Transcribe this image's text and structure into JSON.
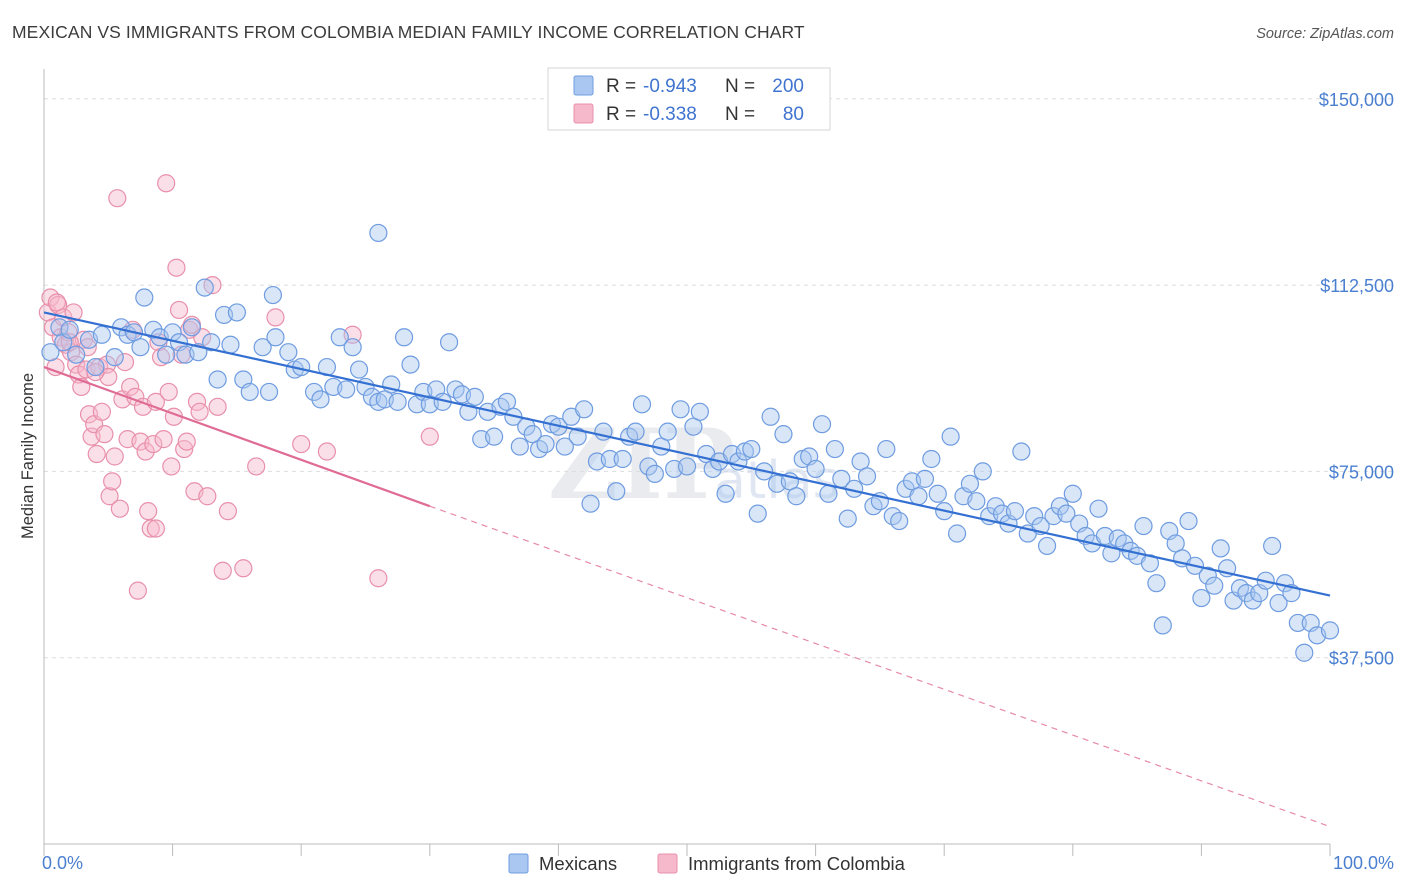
{
  "header": {
    "title": "MEXICAN VS IMMIGRANTS FROM COLOMBIA MEDIAN FAMILY INCOME CORRELATION CHART",
    "source": "Source: ZipAtlas.com"
  },
  "watermark": {
    "main": "ZIP",
    "sub": "atlas"
  },
  "legend_top": {
    "rows": [
      {
        "r_label": "R =",
        "r_value": "-0.943",
        "n_label": "N =",
        "n_value": "200",
        "color": "#a9c7f0",
        "stroke": "#6f9ce0"
      },
      {
        "r_label": "R =",
        "r_value": "-0.338",
        "n_label": "N =",
        "n_value": "80",
        "color": "#f6b8cb",
        "stroke": "#e890ab"
      }
    ]
  },
  "legend_bottom": {
    "items": [
      {
        "label": "Mexicans",
        "color": "#a9c7f0",
        "stroke": "#6f9ce0"
      },
      {
        "label": "Immigrants from Colombia",
        "color": "#f6b8cb",
        "stroke": "#e890ab"
      }
    ]
  },
  "chart_data": {
    "type": "scatter",
    "title": "MEXICAN VS IMMIGRANTS FROM COLOMBIA MEDIAN FAMILY INCOME CORRELATION CHART",
    "xlabel": "",
    "ylabel": "Median Family Income",
    "x_tick_labels": [
      "0.0%",
      "100.0%"
    ],
    "y_tick_labels": [
      "$37,500",
      "$75,000",
      "$112,500",
      "$150,000"
    ],
    "y_ticks": [
      37500,
      75000,
      112500,
      150000
    ],
    "xlim": [
      0,
      100
    ],
    "ylim": [
      0,
      156000
    ],
    "grid": "horizontal dashed",
    "legend_placement": "top-center and bottom-center",
    "series": [
      {
        "name": "Mexicans",
        "color": "#6f9ce0",
        "fill": "#a9c7f0",
        "trend": {
          "x": [
            0,
            100
          ],
          "y": [
            107000,
            50000
          ],
          "style": "solid",
          "color": "#3470d2"
        },
        "points": [
          [
            0.5,
            99000
          ],
          [
            1.2,
            104000
          ],
          [
            1.5,
            101000
          ],
          [
            2,
            103500
          ],
          [
            2.5,
            98500
          ],
          [
            3.5,
            101500
          ],
          [
            4,
            96000
          ],
          [
            4.5,
            102500
          ],
          [
            5.5,
            98000
          ],
          [
            6,
            104000
          ],
          [
            6.5,
            102500
          ],
          [
            7,
            103000
          ],
          [
            7.5,
            100000
          ],
          [
            7.8,
            110000
          ],
          [
            8.5,
            103500
          ],
          [
            9,
            102000
          ],
          [
            9.5,
            98500
          ],
          [
            10,
            103000
          ],
          [
            10.5,
            101000
          ],
          [
            11,
            98500
          ],
          [
            11.5,
            104000
          ],
          [
            12,
            99000
          ],
          [
            12.5,
            112000
          ],
          [
            13,
            101000
          ],
          [
            13.5,
            93500
          ],
          [
            14,
            106500
          ],
          [
            14.5,
            100500
          ],
          [
            15,
            107000
          ],
          [
            15.5,
            93500
          ],
          [
            16,
            91000
          ],
          [
            17,
            100000
          ],
          [
            17.5,
            91000
          ],
          [
            17.8,
            110500
          ],
          [
            18,
            102000
          ],
          [
            19,
            99000
          ],
          [
            19.5,
            95500
          ],
          [
            20,
            96000
          ],
          [
            21,
            91000
          ],
          [
            21.5,
            89500
          ],
          [
            22,
            96000
          ],
          [
            22.5,
            92000
          ],
          [
            23,
            102000
          ],
          [
            23.5,
            91500
          ],
          [
            24,
            100000
          ],
          [
            24.5,
            95500
          ],
          [
            25,
            92000
          ],
          [
            25.5,
            90000
          ],
          [
            26,
            89000
          ],
          [
            26,
            123000
          ],
          [
            26.5,
            89500
          ],
          [
            27,
            92500
          ],
          [
            27.5,
            89000
          ],
          [
            28,
            102000
          ],
          [
            28.5,
            96500
          ],
          [
            29,
            88500
          ],
          [
            29.5,
            91000
          ],
          [
            30,
            88500
          ],
          [
            30.5,
            91500
          ],
          [
            31,
            89000
          ],
          [
            31.5,
            101000
          ],
          [
            32,
            91500
          ],
          [
            32.5,
            90500
          ],
          [
            33,
            87000
          ],
          [
            33.5,
            90000
          ],
          [
            34,
            81500
          ],
          [
            34.5,
            87000
          ],
          [
            35,
            82000
          ],
          [
            35.5,
            88000
          ],
          [
            36,
            89000
          ],
          [
            36.5,
            86000
          ],
          [
            37,
            80000
          ],
          [
            37.5,
            84000
          ],
          [
            38,
            82500
          ],
          [
            38.5,
            79500
          ],
          [
            39,
            80500
          ],
          [
            39.5,
            84500
          ],
          [
            40,
            84000
          ],
          [
            40.5,
            80000
          ],
          [
            41,
            86000
          ],
          [
            41.5,
            82000
          ],
          [
            42,
            87500
          ],
          [
            42.5,
            68500
          ],
          [
            43,
            77000
          ],
          [
            43.5,
            83000
          ],
          [
            44,
            77500
          ],
          [
            44.5,
            71000
          ],
          [
            45,
            77500
          ],
          [
            45.5,
            82000
          ],
          [
            46,
            83000
          ],
          [
            46.5,
            88500
          ],
          [
            47,
            76000
          ],
          [
            47.5,
            74500
          ],
          [
            48,
            80000
          ],
          [
            48.5,
            83000
          ],
          [
            49,
            75500
          ],
          [
            49.5,
            87500
          ],
          [
            50,
            76000
          ],
          [
            50.5,
            84000
          ],
          [
            51,
            87000
          ],
          [
            51.5,
            78500
          ],
          [
            52,
            75500
          ],
          [
            52.5,
            77000
          ],
          [
            53,
            70500
          ],
          [
            53.5,
            78500
          ],
          [
            54,
            77000
          ],
          [
            54.5,
            79000
          ],
          [
            55,
            79500
          ],
          [
            55.5,
            66500
          ],
          [
            56,
            75000
          ],
          [
            56.5,
            86000
          ],
          [
            57,
            72500
          ],
          [
            57.5,
            82500
          ],
          [
            58,
            73000
          ],
          [
            58.5,
            70000
          ],
          [
            59,
            77500
          ],
          [
            59.5,
            78000
          ],
          [
            60,
            75500
          ],
          [
            60.5,
            84500
          ],
          [
            61,
            70500
          ],
          [
            61.5,
            79500
          ],
          [
            62,
            73500
          ],
          [
            62.5,
            65500
          ],
          [
            63,
            71500
          ],
          [
            63.5,
            77000
          ],
          [
            64,
            74000
          ],
          [
            64.5,
            68000
          ],
          [
            65,
            69000
          ],
          [
            65.5,
            79500
          ],
          [
            66,
            66000
          ],
          [
            66.5,
            65000
          ],
          [
            67,
            71500
          ],
          [
            67.5,
            73000
          ],
          [
            68,
            70000
          ],
          [
            68.5,
            73500
          ],
          [
            69,
            77500
          ],
          [
            69.5,
            70500
          ],
          [
            70,
            67000
          ],
          [
            70.5,
            82000
          ],
          [
            71,
            62500
          ],
          [
            71.5,
            70000
          ],
          [
            72,
            72500
          ],
          [
            72.5,
            69000
          ],
          [
            73,
            75000
          ],
          [
            73.5,
            66000
          ],
          [
            74,
            68000
          ],
          [
            74.5,
            66500
          ],
          [
            75,
            64500
          ],
          [
            75.5,
            67000
          ],
          [
            76,
            79000
          ],
          [
            76.5,
            62500
          ],
          [
            77,
            66000
          ],
          [
            77.5,
            64000
          ],
          [
            78,
            60000
          ],
          [
            78.5,
            66000
          ],
          [
            79,
            68000
          ],
          [
            79.5,
            66500
          ],
          [
            80,
            70500
          ],
          [
            80.5,
            64500
          ],
          [
            81,
            62000
          ],
          [
            81.5,
            60500
          ],
          [
            82,
            67500
          ],
          [
            82.5,
            62000
          ],
          [
            83,
            58500
          ],
          [
            83.5,
            61500
          ],
          [
            84,
            60500
          ],
          [
            84.5,
            59000
          ],
          [
            85,
            58000
          ],
          [
            85.5,
            64000
          ],
          [
            86,
            56500
          ],
          [
            86.5,
            52500
          ],
          [
            87,
            44000
          ],
          [
            87.5,
            63000
          ],
          [
            88,
            60500
          ],
          [
            88.5,
            57500
          ],
          [
            89,
            65000
          ],
          [
            89.5,
            56000
          ],
          [
            90,
            49500
          ],
          [
            90.5,
            54000
          ],
          [
            91,
            52000
          ],
          [
            91.5,
            59500
          ],
          [
            92,
            55500
          ],
          [
            92.5,
            49000
          ],
          [
            93,
            51500
          ],
          [
            93.5,
            50500
          ],
          [
            94,
            49000
          ],
          [
            94.5,
            50500
          ],
          [
            95,
            53000
          ],
          [
            95.5,
            60000
          ],
          [
            96,
            48500
          ],
          [
            96.5,
            52500
          ],
          [
            97,
            50500
          ],
          [
            97.5,
            44500
          ],
          [
            98,
            38500
          ],
          [
            98.5,
            44500
          ],
          [
            99,
            42000
          ],
          [
            100,
            43000
          ]
        ]
      },
      {
        "name": "Immigrants from Colombia",
        "color": "#e890ab",
        "fill": "#f6b8cb",
        "trend": {
          "x": [
            0,
            30
          ],
          "y": [
            96000,
            68000
          ],
          "style": "solid",
          "dashed_extension_to": [
            100,
            3500
          ],
          "color": "#e06c96"
        },
        "points": [
          [
            0.3,
            107000
          ],
          [
            0.5,
            110000
          ],
          [
            0.7,
            104000
          ],
          [
            0.9,
            96000
          ],
          [
            1.1,
            108500
          ],
          [
            1.3,
            102000
          ],
          [
            1.5,
            106000
          ],
          [
            1.7,
            100500
          ],
          [
            1.9,
            103000
          ],
          [
            2.1,
            99000
          ],
          [
            2.3,
            107000
          ],
          [
            2.5,
            96500
          ],
          [
            2.7,
            94500
          ],
          [
            2.9,
            92000
          ],
          [
            3.1,
            101500
          ],
          [
            3.3,
            95500
          ],
          [
            3.5,
            86500
          ],
          [
            3.7,
            82000
          ],
          [
            3.9,
            84500
          ],
          [
            4.1,
            78500
          ],
          [
            4.3,
            96000
          ],
          [
            4.5,
            87000
          ],
          [
            4.7,
            82500
          ],
          [
            4.9,
            96500
          ],
          [
            5.1,
            70000
          ],
          [
            5.3,
            73000
          ],
          [
            5.5,
            78000
          ],
          [
            5.7,
            130000
          ],
          [
            5.9,
            67500
          ],
          [
            6.1,
            89500
          ],
          [
            6.3,
            97000
          ],
          [
            6.5,
            81500
          ],
          [
            6.7,
            92000
          ],
          [
            6.9,
            103500
          ],
          [
            7.1,
            90000
          ],
          [
            7.3,
            51000
          ],
          [
            7.5,
            81000
          ],
          [
            7.7,
            88000
          ],
          [
            7.9,
            79000
          ],
          [
            8.1,
            67000
          ],
          [
            8.3,
            63500
          ],
          [
            8.5,
            80500
          ],
          [
            8.7,
            89000
          ],
          [
            8.9,
            101000
          ],
          [
            9.1,
            98000
          ],
          [
            9.3,
            81500
          ],
          [
            9.5,
            133000
          ],
          [
            9.7,
            91000
          ],
          [
            9.9,
            76000
          ],
          [
            10.1,
            86000
          ],
          [
            10.3,
            116000
          ],
          [
            10.5,
            107500
          ],
          [
            10.7,
            98500
          ],
          [
            10.9,
            79500
          ],
          [
            11.1,
            81000
          ],
          [
            11.3,
            103500
          ],
          [
            11.5,
            104500
          ],
          [
            11.7,
            71000
          ],
          [
            11.9,
            89000
          ],
          [
            12.1,
            87000
          ],
          [
            12.3,
            102000
          ],
          [
            12.7,
            70000
          ],
          [
            13.1,
            112500
          ],
          [
            13.5,
            88000
          ],
          [
            13.9,
            55000
          ],
          [
            14.3,
            67000
          ],
          [
            15.5,
            55500
          ],
          [
            16.5,
            76000
          ],
          [
            18,
            106000
          ],
          [
            20,
            80500
          ],
          [
            22,
            79000
          ],
          [
            24,
            102500
          ],
          [
            26,
            53500
          ],
          [
            30,
            82000
          ],
          [
            8.7,
            63500
          ],
          [
            3.4,
            100000
          ],
          [
            5.0,
            94000
          ],
          [
            1.0,
            109000
          ],
          [
            2.0,
            101000
          ],
          [
            4.0,
            95000
          ]
        ]
      }
    ]
  }
}
